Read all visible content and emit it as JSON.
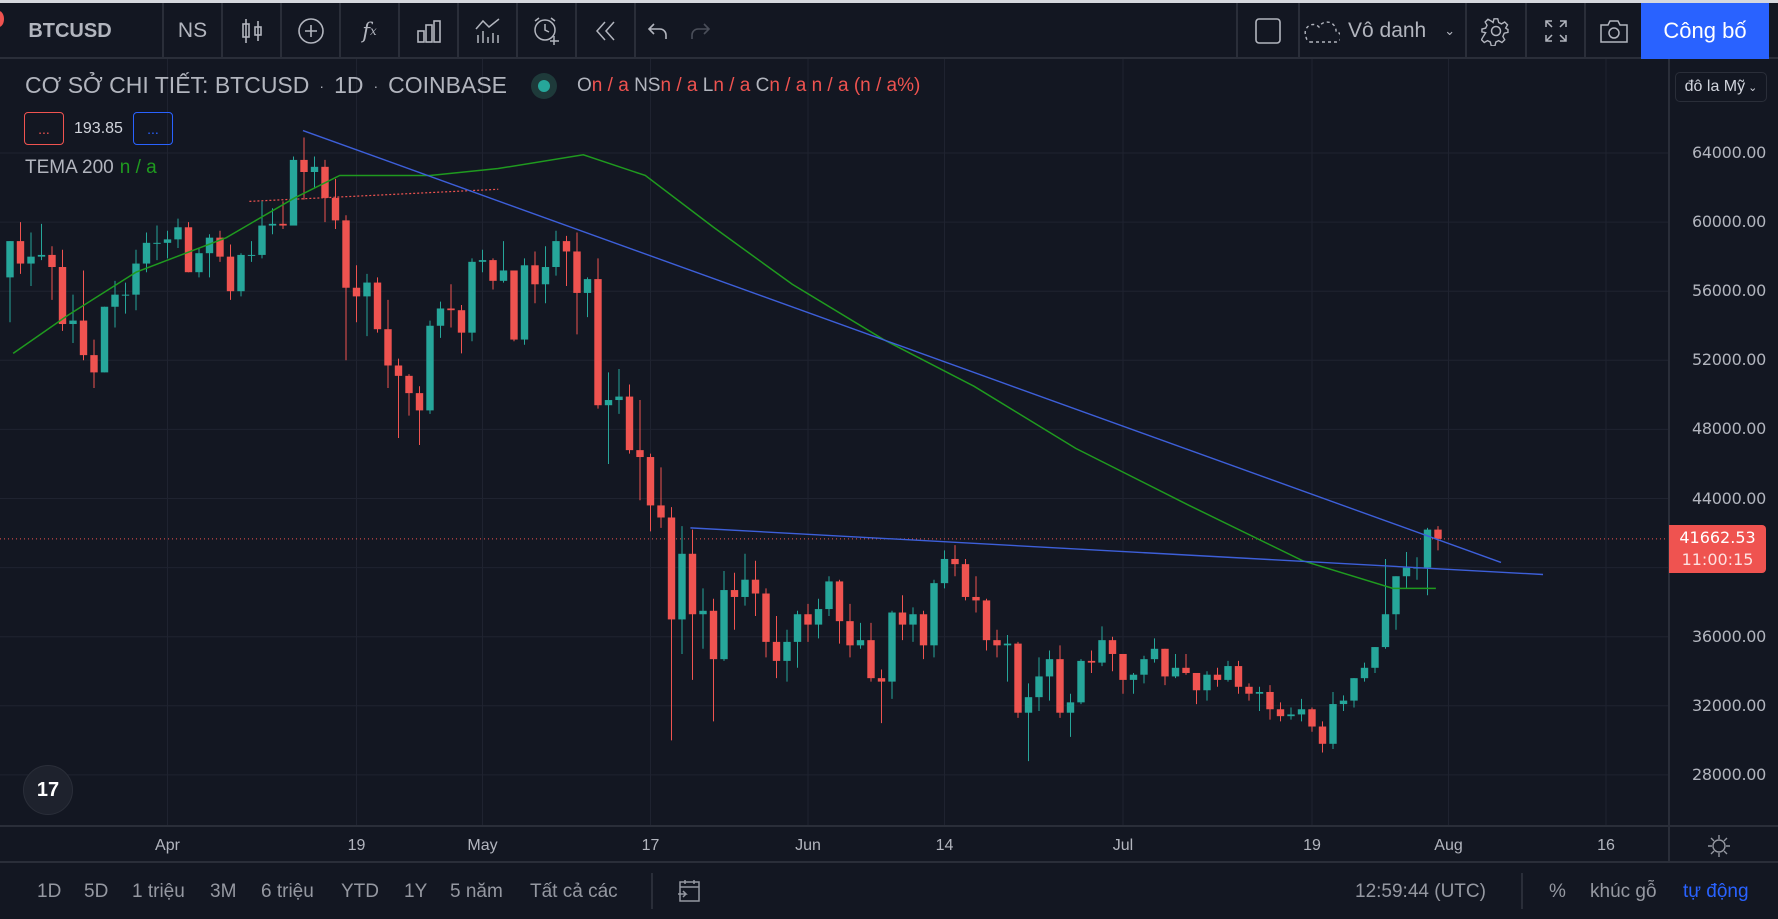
{
  "toolbar": {
    "symbol": "BTCUSD",
    "interval": "NS",
    "layout_name": "Vô danh",
    "publish": "Công bố",
    "icons": [
      "candles-icon",
      "add-compare-icon",
      "indicators-icon",
      "templates-icon",
      "chart-type-icon",
      "alert-icon",
      "replay-icon",
      "undo-icon",
      "redo-icon",
      "layout-square-icon",
      "cloud-icon",
      "gear-icon",
      "fullscreen-icon",
      "camera-icon"
    ]
  },
  "legend": {
    "title": "CƠ SỞ CHI TIẾT: BTCUSD",
    "interval": "1D",
    "exchange": "COINBASE",
    "o_label": "O",
    "o": "n / a",
    "h_label": "NS",
    "h": "n / a",
    "l_label": "L",
    "l": "n / a",
    "c_label": "C",
    "c": "n / a",
    "chg": "n / a (n / a%)",
    "box_left": "...",
    "value": "193.85",
    "box_right": "...",
    "indicator": "TEMA",
    "indicator_len": "200",
    "indicator_val": "n / a"
  },
  "price_axis": {
    "currency": "đô la Mỹ",
    "labels": [
      "64000.00",
      "60000.00",
      "56000.00",
      "52000.00",
      "48000.00",
      "44000.00",
      "36000.00",
      "32000.00",
      "28000.00"
    ],
    "last_price": "41662.53",
    "countdown": "11:00:15"
  },
  "time_axis": {
    "labels": [
      {
        "t": "Apr",
        "i": 15
      },
      {
        "t": "19",
        "i": 33
      },
      {
        "t": "May",
        "i": 45
      },
      {
        "t": "17",
        "i": 61
      },
      {
        "t": "Jun",
        "i": 76
      },
      {
        "t": "14",
        "i": 89
      },
      {
        "t": "Jul",
        "i": 106
      },
      {
        "t": "19",
        "i": 124
      },
      {
        "t": "Aug",
        "i": 137
      },
      {
        "t": "16",
        "i": 152
      }
    ]
  },
  "bottom": {
    "ranges": [
      "1D",
      "5D",
      "1 triệu",
      "3M",
      "6 triệu",
      "YTD",
      "1Y",
      "5 năm",
      "Tất cả các"
    ],
    "clock": "12:59:44 (UTC)",
    "percent": "%",
    "log": "khúc gỗ",
    "auto": "tự động"
  },
  "colors": {
    "up": "#26a69a",
    "down": "#ef5350",
    "ema": "#1f9a1f",
    "trend": "#3d5fd9",
    "accent": "#2962ff"
  },
  "chart_data": {
    "type": "candlestick",
    "ylim": [
      26000,
      66000
    ],
    "last": 41662.53,
    "candles": [
      [
        56800,
        58900,
        54200,
        58900
      ],
      [
        58900,
        60000,
        57000,
        57600
      ],
      [
        57600,
        59400,
        56300,
        58000
      ],
      [
        58000,
        59900,
        57800,
        58100
      ],
      [
        58100,
        58600,
        55500,
        57400
      ],
      [
        57400,
        58400,
        53700,
        54100
      ],
      [
        54100,
        55800,
        53000,
        54300
      ],
      [
        54300,
        57200,
        52000,
        52300
      ],
      [
        52300,
        53200,
        50400,
        51300
      ],
      [
        51300,
        55100,
        51300,
        55100
      ],
      [
        55100,
        56600,
        53900,
        55800
      ],
      [
        55800,
        56500,
        54700,
        55800
      ],
      [
        55800,
        58400,
        54900,
        57600
      ],
      [
        57600,
        59400,
        57100,
        58800
      ],
      [
        58800,
        59800,
        57800,
        58800
      ],
      [
        58800,
        59500,
        57900,
        59000
      ],
      [
        59000,
        60200,
        58500,
        59700
      ],
      [
        59700,
        60000,
        57100,
        57100
      ],
      [
        57100,
        58500,
        56800,
        58200
      ],
      [
        58200,
        59300,
        56800,
        59100
      ],
      [
        59100,
        59500,
        57700,
        58000
      ],
      [
        58000,
        58700,
        55500,
        56000
      ],
      [
        56000,
        58200,
        55700,
        58100
      ],
      [
        58100,
        58900,
        57700,
        58100
      ],
      [
        58100,
        61200,
        57900,
        59800
      ],
      [
        59800,
        60800,
        59300,
        59900
      ],
      [
        59900,
        61200,
        59600,
        59800
      ],
      [
        59800,
        63800,
        59800,
        63600
      ],
      [
        63600,
        64900,
        61300,
        62900
      ],
      [
        62900,
        63800,
        62000,
        63200
      ],
      [
        63200,
        63600,
        60000,
        61400
      ],
      [
        61400,
        62500,
        59600,
        60100
      ],
      [
        60100,
        60400,
        52000,
        56200
      ],
      [
        56200,
        57500,
        54200,
        55700
      ],
      [
        55700,
        57000,
        53400,
        56500
      ],
      [
        56500,
        56800,
        53600,
        53800
      ],
      [
        53800,
        55500,
        50400,
        51700
      ],
      [
        51700,
        52100,
        47500,
        51100
      ],
      [
        51100,
        51200,
        48800,
        50100
      ],
      [
        50100,
        50500,
        47100,
        49100
      ],
      [
        49100,
        54300,
        48900,
        54000
      ],
      [
        54000,
        55400,
        53300,
        55000
      ],
      [
        55000,
        56400,
        53900,
        54900
      ],
      [
        54900,
        55200,
        52400,
        53600
      ],
      [
        53600,
        57900,
        53100,
        57700
      ],
      [
        57700,
        58400,
        57100,
        57800
      ],
      [
        57800,
        57900,
        56100,
        56600
      ],
      [
        56600,
        58900,
        56500,
        57200
      ],
      [
        57200,
        57200,
        53100,
        53200
      ],
      [
        53200,
        57900,
        52900,
        57500
      ],
      [
        57500,
        58300,
        55300,
        56400
      ],
      [
        56400,
        58600,
        55300,
        57400
      ],
      [
        57400,
        59500,
        56900,
        58900
      ],
      [
        58900,
        59200,
        56300,
        58300
      ],
      [
        58300,
        59400,
        53500,
        55900
      ],
      [
        55900,
        56800,
        54500,
        56700
      ],
      [
        56700,
        57900,
        49200,
        49400
      ],
      [
        49400,
        51300,
        46000,
        49700
      ],
      [
        49700,
        51500,
        48900,
        49900
      ],
      [
        49900,
        50600,
        46600,
        46800
      ],
      [
        46800,
        49700,
        43900,
        46400
      ],
      [
        46400,
        46600,
        42100,
        43600
      ],
      [
        43600,
        45800,
        42300,
        42900
      ],
      [
        42900,
        43500,
        30000,
        37000
      ],
      [
        37000,
        42400,
        35000,
        40800
      ],
      [
        40800,
        42200,
        33500,
        37300
      ],
      [
        37300,
        38800,
        35300,
        37500
      ],
      [
        37500,
        38200,
        31100,
        34700
      ],
      [
        34700,
        39800,
        34600,
        38700
      ],
      [
        38700,
        39700,
        36400,
        38300
      ],
      [
        38300,
        40800,
        37800,
        39300
      ],
      [
        39300,
        40400,
        37200,
        38500
      ],
      [
        38500,
        38800,
        34800,
        35700
      ],
      [
        35700,
        37200,
        33600,
        34600
      ],
      [
        34600,
        36400,
        33400,
        35700
      ],
      [
        35700,
        37500,
        34200,
        37300
      ],
      [
        37300,
        37900,
        35700,
        36700
      ],
      [
        36700,
        38200,
        35900,
        37600
      ],
      [
        37600,
        39500,
        37200,
        39200
      ],
      [
        39200,
        39300,
        35600,
        36900
      ],
      [
        36900,
        37900,
        34800,
        35500
      ],
      [
        35500,
        36800,
        35300,
        35800
      ],
      [
        35800,
        36800,
        33400,
        33600
      ],
      [
        33600,
        34100,
        31000,
        33400
      ],
      [
        33400,
        37500,
        32400,
        37400
      ],
      [
        37400,
        38400,
        35800,
        36700
      ],
      [
        36700,
        37700,
        35700,
        37300
      ],
      [
        37300,
        37500,
        34700,
        35500
      ],
      [
        35500,
        39300,
        34800,
        39100
      ],
      [
        39100,
        41000,
        38800,
        40500
      ],
      [
        40500,
        41300,
        39500,
        40200
      ],
      [
        40200,
        40500,
        38100,
        38300
      ],
      [
        38300,
        39500,
        37400,
        38100
      ],
      [
        38100,
        38200,
        35200,
        35800
      ],
      [
        35800,
        36400,
        34800,
        35500
      ],
      [
        35500,
        36100,
        33400,
        35600
      ],
      [
        35600,
        35700,
        31300,
        31600
      ],
      [
        31600,
        33300,
        28800,
        32500
      ],
      [
        32500,
        34800,
        31700,
        33700
      ],
      [
        33700,
        35200,
        32300,
        34700
      ],
      [
        34700,
        35500,
        31300,
        31600
      ],
      [
        31600,
        32700,
        30200,
        32200
      ],
      [
        32200,
        34700,
        32100,
        34600
      ],
      [
        34600,
        35200,
        33900,
        34500
      ],
      [
        34500,
        36600,
        34300,
        35800
      ],
      [
        35800,
        36000,
        34000,
        35000
      ],
      [
        35000,
        35000,
        32700,
        33500
      ],
      [
        33500,
        33900,
        32700,
        33800
      ],
      [
        33800,
        34900,
        33300,
        34700
      ],
      [
        34700,
        35900,
        34500,
        35300
      ],
      [
        35300,
        35300,
        33200,
        33700
      ],
      [
        33700,
        35000,
        33600,
        34200
      ],
      [
        34200,
        35000,
        33800,
        33900
      ],
      [
        33900,
        33900,
        32100,
        32900
      ],
      [
        32900,
        34000,
        32300,
        33800
      ],
      [
        33800,
        34200,
        33100,
        33500
      ],
      [
        33500,
        34600,
        33400,
        34300
      ],
      [
        34300,
        34600,
        32700,
        33100
      ],
      [
        33100,
        33300,
        32300,
        32700
      ],
      [
        32700,
        33100,
        31700,
        32800
      ],
      [
        32800,
        33200,
        31200,
        31800
      ],
      [
        31800,
        32200,
        31100,
        31400
      ],
      [
        31400,
        31900,
        31200,
        31500
      ],
      [
        31500,
        32400,
        31100,
        31800
      ],
      [
        31800,
        31900,
        30500,
        30800
      ],
      [
        30800,
        31100,
        29300,
        29800
      ],
      [
        29800,
        32800,
        29500,
        32100
      ],
      [
        32100,
        32600,
        31700,
        32300
      ],
      [
        32300,
        33600,
        31900,
        33600
      ],
      [
        33600,
        34500,
        33400,
        34200
      ],
      [
        34200,
        35400,
        33900,
        35400
      ],
      [
        35400,
        40500,
        35300,
        37300
      ],
      [
        37300,
        39500,
        36400,
        39500
      ],
      [
        39500,
        40900,
        38800,
        40000
      ],
      [
        40000,
        40600,
        39300,
        40000
      ],
      [
        40000,
        42300,
        38400,
        42200
      ],
      [
        42200,
        42400,
        41000,
        41662.53
      ]
    ],
    "tema": [
      [
        0.3,
        52400
      ],
      [
        5.5,
        54600
      ],
      [
        12,
        57100
      ],
      [
        20.6,
        59100
      ],
      [
        27.1,
        61400
      ],
      [
        31.4,
        62700
      ],
      [
        40,
        62700
      ],
      [
        46.5,
        63100
      ],
      [
        54.6,
        63900
      ],
      [
        60.5,
        62700
      ],
      [
        67,
        59700
      ],
      [
        74.5,
        56400
      ],
      [
        83.2,
        53200
      ],
      [
        91.8,
        50500
      ],
      [
        101.5,
        46900
      ],
      [
        112.3,
        43600
      ],
      [
        123.1,
        40400
      ],
      [
        131.7,
        38800
      ],
      [
        135.8,
        38800
      ]
    ],
    "trendlines": [
      [
        [
          27.9,
          65300
        ],
        [
          142,
          40300
        ]
      ],
      [
        [
          64.8,
          42300
        ],
        [
          146,
          39600
        ]
      ]
    ],
    "dotted_lines": [
      [
        [
          22.8,
          61200
        ],
        [
          46.5,
          61900
        ]
      ]
    ]
  }
}
